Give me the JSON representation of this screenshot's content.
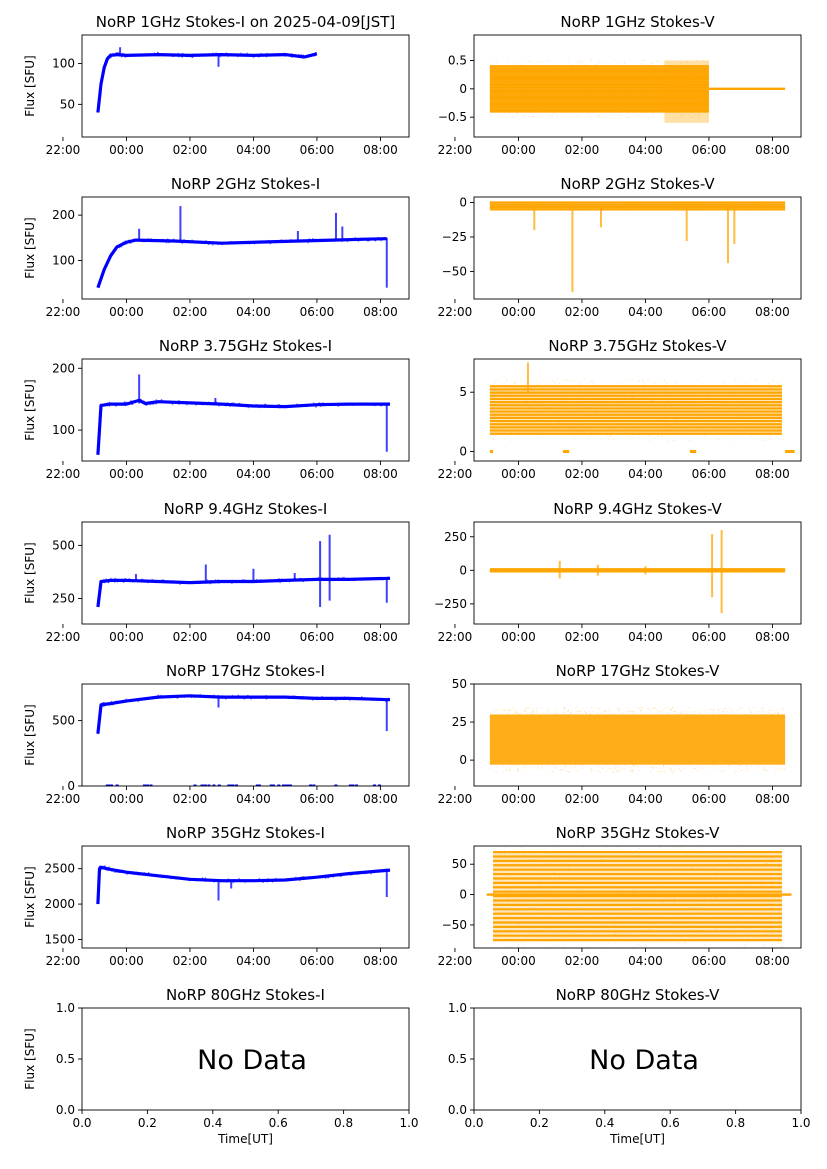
{
  "colors": {
    "stokes_i": "#0000ff",
    "stokes_v": "#ffa500",
    "axis": "#000000",
    "background": "#ffffff"
  },
  "shared": {
    "time_ticks": [
      "22:00",
      "00:00",
      "02:00",
      "04:00",
      "06:00",
      "08:00"
    ],
    "ylabel_i": "Flux [SFU]",
    "xlabel_bottom": "Time[UT]",
    "no_data_label": "No Data"
  },
  "chart_data": [
    {
      "type": "scatter",
      "title": "NoRP 1GHz Stokes-I on 2025-04-09[JST]",
      "ylabel": "Flux [SFU]",
      "xlim": [
        -1.4,
        8.9
      ],
      "ylim": [
        10,
        135
      ],
      "x_ticks": [
        "22:00",
        "00:00",
        "02:00",
        "04:00",
        "06:00",
        "08:00"
      ],
      "yticks": [
        50,
        100
      ],
      "series": [
        {
          "color": "#0000ff",
          "x": [
            -0.9,
            -0.8,
            -0.7,
            -0.6,
            -0.5,
            -0.3,
            0.0,
            1.0,
            2.0,
            3.0,
            4.0,
            5.0,
            5.6,
            6.0
          ],
          "y": [
            40,
            75,
            95,
            106,
            110,
            111,
            110,
            111,
            110,
            111,
            110,
            111,
            108,
            112
          ]
        }
      ],
      "spikes": [
        {
          "x": 2.9,
          "y": [
            96,
            112
          ]
        },
        {
          "x": -0.2,
          "y": [
            110,
            120
          ]
        }
      ]
    },
    {
      "type": "scatter",
      "title": "NoRP 1GHz Stokes-V",
      "xlim": [
        -1.4,
        8.9
      ],
      "ylim": [
        -0.85,
        0.95
      ],
      "x_ticks": [
        "22:00",
        "00:00",
        "02:00",
        "04:00",
        "06:00",
        "08:00"
      ],
      "yticks": [
        -0.5,
        0.0,
        0.5
      ],
      "series": [
        {
          "color": "#ffa500",
          "band": {
            "x": [
              -0.9,
              6.0
            ],
            "y": [
              -0.4,
              0.4
            ],
            "line_count": 22
          },
          "flat": {
            "x": [
              6.0,
              8.4
            ],
            "y": 0.0
          },
          "bulge": {
            "x": [
              4.6,
              6.0
            ],
            "y": [
              -0.6,
              0.5
            ]
          }
        }
      ]
    },
    {
      "type": "scatter",
      "title": "NoRP 2GHz Stokes-I",
      "ylabel": "Flux [SFU]",
      "xlim": [
        -1.4,
        8.9
      ],
      "ylim": [
        15,
        240
      ],
      "x_ticks": [
        "22:00",
        "00:00",
        "02:00",
        "04:00",
        "06:00",
        "08:00"
      ],
      "yticks": [
        100,
        200
      ],
      "series": [
        {
          "color": "#0000ff",
          "x": [
            -0.9,
            -0.7,
            -0.5,
            -0.3,
            0.0,
            0.3,
            0.8,
            1.5,
            3.0,
            5.0,
            6.5,
            7.5,
            8.2
          ],
          "y": [
            40,
            80,
            110,
            130,
            140,
            145,
            144,
            143,
            138,
            142,
            145,
            147,
            148
          ]
        }
      ],
      "spikes": [
        {
          "x": 0.4,
          "y": [
            145,
            170
          ]
        },
        {
          "x": 1.7,
          "y": [
            145,
            220
          ]
        },
        {
          "x": 5.4,
          "y": [
            145,
            165
          ]
        },
        {
          "x": 6.6,
          "y": [
            145,
            205
          ]
        },
        {
          "x": 6.8,
          "y": [
            145,
            175
          ]
        },
        {
          "x": 8.2,
          "y": [
            40,
            150
          ]
        }
      ]
    },
    {
      "type": "scatter",
      "title": "NoRP 2GHz Stokes-V",
      "xlim": [
        -1.4,
        8.9
      ],
      "ylim": [
        -70,
        4
      ],
      "x_ticks": [
        "22:00",
        "00:00",
        "02:00",
        "04:00",
        "06:00",
        "08:00"
      ],
      "yticks": [
        -50,
        -25,
        0
      ],
      "series": [
        {
          "color": "#ffa500",
          "band": {
            "x": [
              -0.9,
              8.4
            ],
            "y": [
              -5,
              0
            ],
            "line_count": 4
          }
        }
      ],
      "spikes": [
        {
          "x": 0.5,
          "y": [
            -20,
            -2
          ]
        },
        {
          "x": 1.7,
          "y": [
            -65,
            -2
          ]
        },
        {
          "x": 2.6,
          "y": [
            -18,
            -2
          ]
        },
        {
          "x": 5.3,
          "y": [
            -28,
            -2
          ]
        },
        {
          "x": 6.6,
          "y": [
            -44,
            -2
          ]
        },
        {
          "x": 6.8,
          "y": [
            -30,
            -2
          ]
        }
      ]
    },
    {
      "type": "scatter",
      "title": "NoRP 3.75GHz Stokes-I",
      "ylabel": "Flux [SFU]",
      "xlim": [
        -1.4,
        8.9
      ],
      "ylim": [
        50,
        215
      ],
      "x_ticks": [
        "22:00",
        "00:00",
        "02:00",
        "04:00",
        "06:00",
        "08:00"
      ],
      "yticks": [
        100,
        200
      ],
      "series": [
        {
          "color": "#0000ff",
          "x": [
            -0.9,
            -0.8,
            -0.5,
            0.0,
            0.4,
            0.6,
            1.0,
            2.0,
            3.0,
            4.0,
            5.0,
            6.0,
            7.0,
            8.3
          ],
          "y": [
            60,
            140,
            142,
            142,
            148,
            143,
            146,
            144,
            142,
            139,
            138,
            141,
            142,
            142
          ]
        }
      ],
      "spikes": [
        {
          "x": 0.4,
          "y": [
            143,
            190
          ]
        },
        {
          "x": 2.8,
          "y": [
            140,
            152
          ]
        },
        {
          "x": 8.2,
          "y": [
            65,
            142
          ]
        }
      ]
    },
    {
      "type": "scatter",
      "title": "NoRP 3.75GHz Stokes-V",
      "xlim": [
        -1.4,
        8.9
      ],
      "ylim": [
        -0.8,
        7.8
      ],
      "x_ticks": [
        "22:00",
        "00:00",
        "02:00",
        "04:00",
        "06:00",
        "08:00"
      ],
      "yticks": [
        0,
        5
      ],
      "series": [
        {
          "color": "#ffa500",
          "band": {
            "x": [
              -0.9,
              8.3
            ],
            "y": [
              1.5,
              5.5
            ],
            "line_count": 16
          },
          "flat_segments": [
            {
              "x": [
                -0.9,
                -0.8
              ],
              "y": 0.0
            },
            {
              "x": [
                1.4,
                1.6
              ],
              "y": 0.0
            },
            {
              "x": [
                5.4,
                5.6
              ],
              "y": 0.0
            },
            {
              "x": [
                8.4,
                8.7
              ],
              "y": 0.0
            }
          ]
        }
      ],
      "spikes": [
        {
          "x": 0.3,
          "y": [
            5,
            7.5
          ]
        }
      ]
    },
    {
      "type": "scatter",
      "title": "NoRP 9.4GHz Stokes-I",
      "ylabel": "Flux [SFU]",
      "xlim": [
        -1.4,
        8.9
      ],
      "ylim": [
        130,
        610
      ],
      "x_ticks": [
        "22:00",
        "00:00",
        "02:00",
        "04:00",
        "06:00",
        "08:00"
      ],
      "yticks": [
        250,
        500
      ],
      "series": [
        {
          "color": "#0000ff",
          "x": [
            -0.9,
            -0.8,
            -0.5,
            0.0,
            1.0,
            2.0,
            3.0,
            4.0,
            5.0,
            6.0,
            7.0,
            8.3
          ],
          "y": [
            210,
            330,
            335,
            335,
            330,
            325,
            330,
            330,
            335,
            340,
            340,
            345
          ]
        }
      ],
      "spikes": [
        {
          "x": 0.3,
          "y": [
            330,
            365
          ]
        },
        {
          "x": 2.5,
          "y": [
            320,
            410
          ]
        },
        {
          "x": 4.0,
          "y": [
            330,
            390
          ]
        },
        {
          "x": 5.3,
          "y": [
            330,
            370
          ]
        },
        {
          "x": 6.1,
          "y": [
            210,
            520
          ]
        },
        {
          "x": 6.4,
          "y": [
            240,
            550
          ]
        },
        {
          "x": 8.2,
          "y": [
            230,
            345
          ]
        }
      ]
    },
    {
      "type": "scatter",
      "title": "NoRP 9.4GHz Stokes-V",
      "xlim": [
        -1.4,
        8.9
      ],
      "ylim": [
        -400,
        360
      ],
      "x_ticks": [
        "22:00",
        "00:00",
        "02:00",
        "04:00",
        "06:00",
        "08:00"
      ],
      "yticks": [
        -250,
        0,
        250
      ],
      "series": [
        {
          "color": "#ffa500",
          "band": {
            "x": [
              -0.9,
              8.4
            ],
            "y": [
              -8,
              8
            ],
            "line_count": 2
          }
        }
      ],
      "spikes": [
        {
          "x": 1.3,
          "y": [
            -60,
            70
          ]
        },
        {
          "x": 2.5,
          "y": [
            -40,
            40
          ]
        },
        {
          "x": 4.0,
          "y": [
            -30,
            30
          ]
        },
        {
          "x": 6.1,
          "y": [
            -200,
            270
          ]
        },
        {
          "x": 6.4,
          "y": [
            -320,
            300
          ]
        }
      ]
    },
    {
      "type": "scatter",
      "title": "NoRP 17GHz Stokes-I",
      "ylabel": "Flux [SFU]",
      "xlim": [
        -1.4,
        8.9
      ],
      "ylim": [
        0,
        780
      ],
      "x_ticks": [
        "22:00",
        "00:00",
        "02:00",
        "04:00",
        "06:00",
        "08:00"
      ],
      "yticks": [
        0,
        500
      ],
      "series": [
        {
          "color": "#0000ff",
          "x": [
            -0.9,
            -0.8,
            -0.5,
            0.0,
            1.0,
            2.0,
            3.0,
            4.0,
            5.0,
            6.0,
            7.0,
            8.3
          ],
          "y": [
            400,
            620,
            630,
            650,
            680,
            690,
            680,
            680,
            680,
            670,
            670,
            660
          ]
        }
      ],
      "zeros": {
        "x": [
          -0.9,
          8.6
        ],
        "y": 0
      },
      "spikes": [
        {
          "x": 2.9,
          "y": [
            600,
            690
          ]
        },
        {
          "x": 8.2,
          "y": [
            420,
            660
          ]
        }
      ]
    },
    {
      "type": "scatter",
      "title": "NoRP 17GHz Stokes-V",
      "xlim": [
        -1.4,
        8.9
      ],
      "ylim": [
        -17,
        50
      ],
      "x_ticks": [
        "22:00",
        "00:00",
        "02:00",
        "04:00",
        "06:00",
        "08:00"
      ],
      "yticks": [
        0,
        25,
        50
      ],
      "series": [
        {
          "color": "#ffa500",
          "band": {
            "x": [
              -0.9,
              8.4
            ],
            "y": [
              -3,
              30
            ],
            "line_count": 0
          }
        }
      ],
      "spikes": []
    },
    {
      "type": "scatter",
      "title": "NoRP 35GHz Stokes-I",
      "ylabel": "Flux [SFU]",
      "xlim": [
        -1.4,
        8.9
      ],
      "ylim": [
        1380,
        2820
      ],
      "x_ticks": [
        "22:00",
        "00:00",
        "02:00",
        "04:00",
        "06:00",
        "08:00"
      ],
      "yticks": [
        1500,
        2000,
        2500
      ],
      "series": [
        {
          "color": "#0000ff",
          "x": [
            -0.9,
            -0.85,
            -0.8,
            -0.5,
            0.0,
            1.0,
            2.0,
            3.0,
            4.0,
            5.0,
            6.0,
            7.0,
            8.3
          ],
          "y": [
            2000,
            2500,
            2520,
            2490,
            2450,
            2400,
            2350,
            2330,
            2330,
            2340,
            2380,
            2430,
            2480
          ]
        }
      ],
      "spikes": [
        {
          "x": 2.9,
          "y": [
            2050,
            2340
          ]
        },
        {
          "x": 3.3,
          "y": [
            2220,
            2330
          ]
        },
        {
          "x": 8.2,
          "y": [
            2100,
            2480
          ]
        }
      ]
    },
    {
      "type": "scatter",
      "title": "NoRP 35GHz Stokes-V",
      "xlim": [
        -1.4,
        8.9
      ],
      "ylim": [
        -88,
        80
      ],
      "x_ticks": [
        "22:00",
        "00:00",
        "02:00",
        "04:00",
        "06:00",
        "08:00"
      ],
      "yticks": [
        -50,
        0,
        50
      ],
      "series": [
        {
          "color": "#ffa500",
          "band": {
            "x": [
              -0.8,
              8.3
            ],
            "y": [
              -75,
              70
            ],
            "line_count": 21
          },
          "flat": {
            "x": [
              -1.0,
              8.6
            ],
            "y": 0.0
          }
        }
      ]
    },
    {
      "type": "scatter",
      "title": "NoRP 80GHz Stokes-I",
      "ylabel": "Flux [SFU]",
      "xlabel": "Time[UT]",
      "xlim": [
        0,
        1
      ],
      "ylim": [
        0,
        1
      ],
      "x_ticks": [
        "0.0",
        "0.2",
        "0.4",
        "0.6",
        "0.8",
        "1.0"
      ],
      "y_ticks": [
        "0.0",
        "0.5",
        "1.0"
      ],
      "annotation": "No Data",
      "series": []
    },
    {
      "type": "scatter",
      "title": "NoRP 80GHz Stokes-V",
      "xlabel": "Time[UT]",
      "xlim": [
        0,
        1
      ],
      "ylim": [
        0,
        1
      ],
      "x_ticks": [
        "0.0",
        "0.2",
        "0.4",
        "0.6",
        "0.8",
        "1.0"
      ],
      "y_ticks": [
        "0.0",
        "0.5",
        "1.0"
      ],
      "annotation": "No Data",
      "series": []
    }
  ]
}
